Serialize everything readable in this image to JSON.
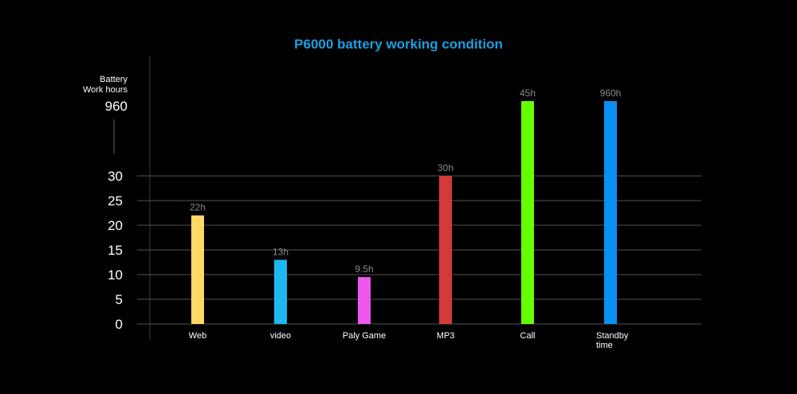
{
  "chart_data": {
    "type": "bar",
    "title": "P6000 battery working condition",
    "ylabel": "Battery Work hours",
    "ylabel_lines": [
      "Battery",
      "Work hours"
    ],
    "y_break_label": "960",
    "categories": [
      "Web",
      "video",
      "Paly Game",
      "MP3",
      "Call",
      "Standby time"
    ],
    "category_lines": [
      [
        "Web"
      ],
      [
        "video"
      ],
      [
        "Paly Game"
      ],
      [
        "MP3"
      ],
      [
        "Call"
      ],
      [
        "Standby",
        "time"
      ]
    ],
    "values": [
      22,
      13,
      9.5,
      30,
      45,
      960
    ],
    "data_labels": [
      "22h",
      "13h",
      "9.5h",
      "30h",
      "45h",
      "960h"
    ],
    "yticks": [
      0,
      5,
      10,
      15,
      20,
      25,
      30
    ],
    "ylim": [
      0,
      30
    ],
    "axis_break": true,
    "grid": true,
    "colors": [
      "#ffd966",
      "#1eb8f0",
      "#ee58ee",
      "#d43a3a",
      "#66ff00",
      "#0a8ff5"
    ],
    "title_color": "#1a9fe0",
    "grid_color": "#555555",
    "label_color": "#888888",
    "text_color": "#ffffff"
  }
}
